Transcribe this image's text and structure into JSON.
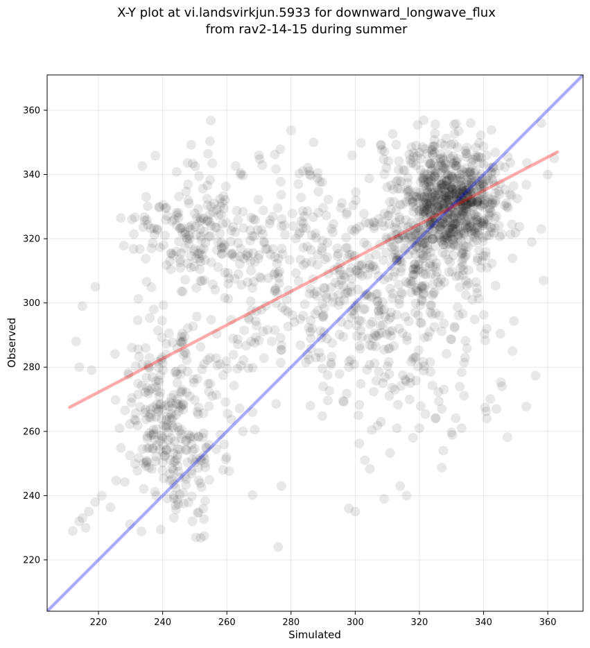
{
  "chart_data": {
    "type": "scatter",
    "title_lines": [
      "X-Y plot at vi.landsvirkjun.5933 for downward_longwave_flux",
      "from rav2-14-15 during summer"
    ],
    "xlabel": "Simulated",
    "ylabel": "Observed",
    "xlim": [
      204,
      371
    ],
    "ylim": [
      204,
      371
    ],
    "xticks": [
      220,
      240,
      260,
      280,
      300,
      320,
      340,
      360
    ],
    "yticks": [
      220,
      240,
      260,
      280,
      300,
      320,
      340,
      360
    ],
    "grid": true,
    "point_color": "#000000",
    "point_alpha": 0.09,
    "clusters": [
      {
        "center": [
          330,
          332
        ],
        "spread": [
          8,
          9
        ],
        "count": 650
      },
      {
        "center": [
          322,
          318
        ],
        "spread": [
          10,
          12
        ],
        "count": 200
      },
      {
        "center": [
          243,
          262
        ],
        "spread": [
          8,
          16
        ],
        "count": 300
      },
      {
        "center": [
          250,
          322
        ],
        "spread": [
          10,
          10
        ],
        "count": 150
      },
      {
        "center": [
          280,
          310
        ],
        "spread": [
          20,
          20
        ],
        "count": 300
      },
      {
        "center": [
          305,
          300
        ],
        "spread": [
          15,
          18
        ],
        "count": 200
      },
      {
        "center": [
          325,
          285
        ],
        "spread": [
          14,
          18
        ],
        "count": 80
      }
    ],
    "outliers": [
      [
        212,
        229
      ],
      [
        214,
        232
      ],
      [
        215,
        233
      ],
      [
        217,
        235
      ],
      [
        216,
        230
      ],
      [
        219,
        238
      ],
      [
        221,
        240
      ],
      [
        276,
        224
      ],
      [
        277,
        243
      ],
      [
        309,
        239
      ],
      [
        303,
        251
      ],
      [
        298,
        236
      ],
      [
        300,
        235
      ],
      [
        314,
        243
      ],
      [
        316,
        240
      ],
      [
        313,
        261
      ],
      [
        318,
        258
      ],
      [
        320,
        261
      ],
      [
        325,
        264
      ],
      [
        341,
        264
      ],
      [
        219,
        305
      ],
      [
        215,
        299
      ],
      [
        213,
        288
      ],
      [
        214,
        280
      ],
      [
        244,
        237
      ],
      [
        238,
        240
      ],
      [
        270,
        346
      ],
      [
        287,
        350
      ],
      [
        308,
        349
      ],
      [
        319,
        349
      ],
      [
        336,
        356
      ],
      [
        358,
        356
      ],
      [
        362,
        345
      ],
      [
        360,
        340
      ],
      [
        358,
        323
      ],
      [
        355,
        319
      ],
      [
        349,
        285
      ],
      [
        341,
        292
      ],
      [
        344,
        267
      ],
      [
        327,
        267
      ],
      [
        252,
        251
      ],
      [
        258,
        259
      ],
      [
        265,
        260
      ],
      [
        268,
        266
      ],
      [
        286,
        268
      ],
      [
        290,
        274
      ],
      [
        298,
        280
      ],
      [
        301,
        265
      ]
    ],
    "series": [
      {
        "name": "",
        "kind": "line",
        "color": "#0000ff",
        "alpha": 0.33,
        "x": [
          204,
          371
        ],
        "y": [
          204,
          371
        ]
      },
      {
        "name": "",
        "kind": "line",
        "color": "#ff0000",
        "alpha": 0.33,
        "x": [
          211,
          363
        ],
        "y": [
          267.5,
          347
        ]
      }
    ]
  }
}
